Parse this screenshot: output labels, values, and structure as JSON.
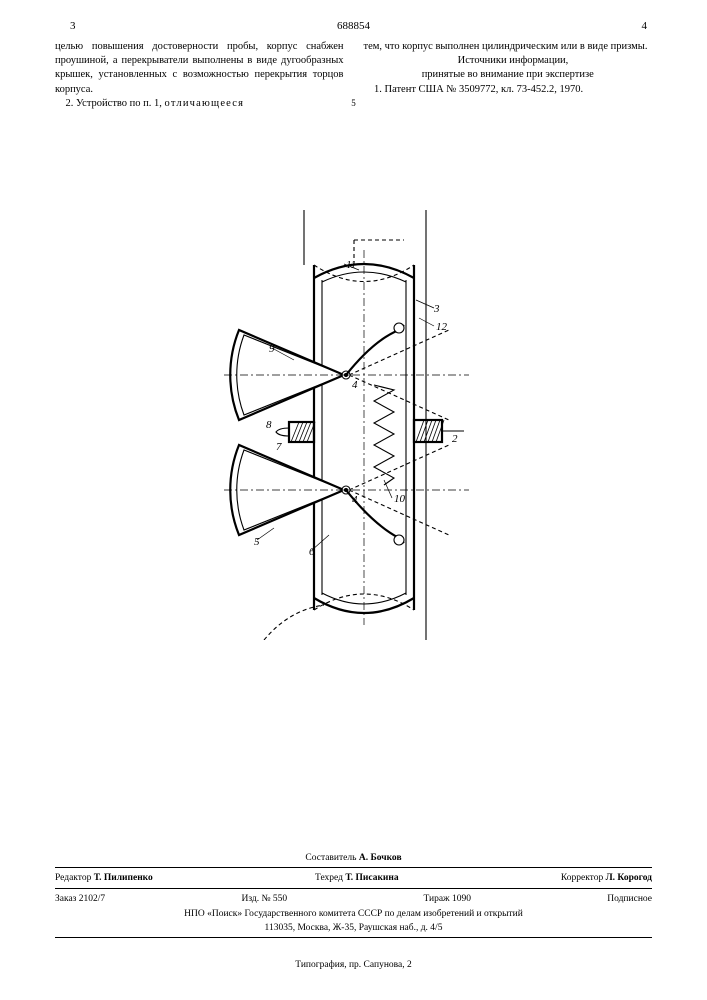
{
  "doc_number": "688854",
  "page_left": "3",
  "page_right": "4",
  "line_marker": "5",
  "left_column": {
    "p1": "целью повышения достоверности пробы, корпус снабжен проушиной, а перекрыватели выполнены в виде дугообразных крышек, установленных с возможностью перекрытия торцов корпуса.",
    "p2_prefix": "2. Устройство по п. 1, ",
    "p2_spaced": "отличающееся"
  },
  "right_column": {
    "p1": "тем, что корпус выполнен цилиндрическим или в виде призмы.",
    "p2": "Источники информации,",
    "p3": "принятые во внимание при экспертизе",
    "p4": "1. Патент США № 3509772, кл. 73-452.2, 1970."
  },
  "figure": {
    "labels": [
      "2",
      "3",
      "4",
      "5",
      "6",
      "7",
      "8",
      "9",
      "10",
      "11",
      "12"
    ],
    "stroke": "#000000",
    "dash": "4,3",
    "thin": 1.1,
    "thick": 2.2
  },
  "imprint": {
    "compositor_label": "Составитель ",
    "compositor_name": "А. Бочков",
    "editor_label": "Редактор ",
    "editor_name": "Т. Пилипенко",
    "techred_label": "Техред ",
    "techred_name": "Т. Писакина",
    "corrector_label": "Корректор ",
    "corrector_name": "Л. Корогод",
    "order": "Заказ 2102/7",
    "izd": "Изд. № 550",
    "tirazh": "Тираж 1090",
    "podpisnoe": "Подписное",
    "org": "НПО «Поиск» Государственного комитета СССР по делам изобретений и открытий",
    "address": "113035, Москва, Ж-35, Раушская наб., д. 4/5",
    "typography": "Типография, пр. Сапунова, 2"
  }
}
